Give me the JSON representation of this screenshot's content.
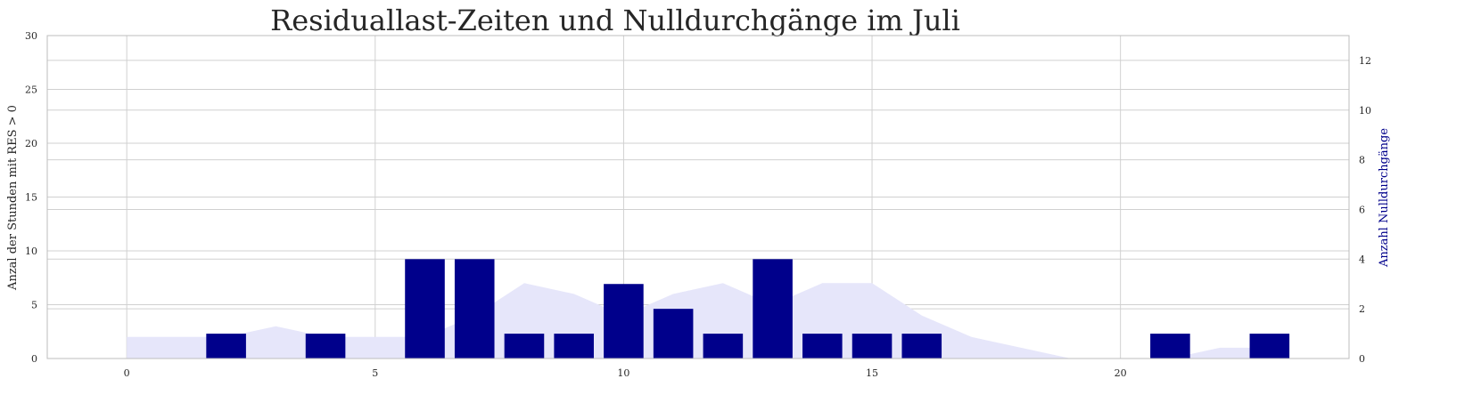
{
  "chart_data": {
    "type": "bar",
    "title": "Residuallast-Zeiten und Nulldurchgänge im Juli",
    "xlabel": "",
    "ylabel_left": "Anzal der Stunden mit RES > 0",
    "ylabel_right": "Anzahl Nulldurchgänge",
    "x_ticks": [
      0,
      5,
      10,
      15,
      20
    ],
    "y_left_ticks": [
      0,
      5,
      10,
      15,
      20,
      25,
      30
    ],
    "y_right_ticks": [
      0,
      2,
      4,
      6,
      8,
      10,
      12
    ],
    "xlim": [
      -1.6,
      24.6
    ],
    "ylim_left": [
      0,
      30
    ],
    "ylim_right": [
      0,
      13
    ],
    "grid": true,
    "area_series": {
      "name": "",
      "axis": "left",
      "color": "#e6e6fa",
      "x": [
        0,
        1,
        2,
        3,
        4,
        5,
        6,
        7,
        8,
        9,
        10,
        11,
        12,
        13,
        14,
        15,
        16,
        17,
        18,
        19,
        20,
        21,
        22,
        23
      ],
      "values": [
        2,
        2,
        2,
        3,
        2,
        2,
        2,
        4,
        7,
        6,
        4,
        6,
        7,
        5,
        7,
        7,
        4,
        2,
        1,
        0,
        0,
        0,
        1,
        1
      ]
    },
    "bar_series": {
      "name": "",
      "axis": "right",
      "color": "#00008b",
      "x": [
        0,
        1,
        2,
        3,
        4,
        5,
        6,
        7,
        8,
        9,
        10,
        11,
        12,
        13,
        14,
        15,
        16,
        17,
        18,
        19,
        20,
        21,
        22,
        23
      ],
      "values": [
        0,
        0,
        1,
        0,
        1,
        0,
        4,
        4,
        1,
        1,
        3,
        2,
        1,
        4,
        1,
        1,
        1,
        0,
        0,
        0,
        0,
        1,
        0,
        1
      ]
    }
  }
}
